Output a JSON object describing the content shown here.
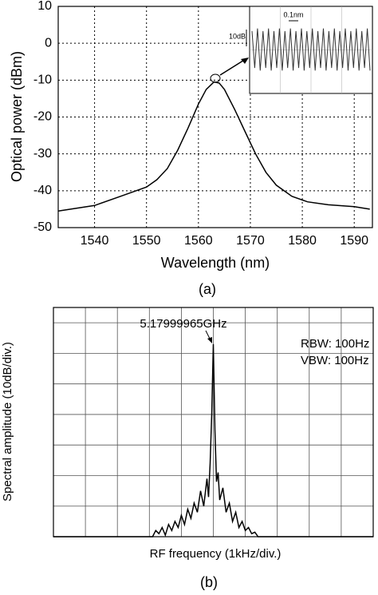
{
  "chart_data": [
    {
      "type": "line",
      "xlabel": "Wavelength (nm)",
      "ylabel": "Optical power (dBm)",
      "caption": "(a)",
      "xlim": [
        1533,
        1593.5
      ],
      "ylim": [
        -50,
        10
      ],
      "xticks": [
        1540,
        1550,
        1560,
        1570,
        1580,
        1590
      ],
      "yticks": [
        -50,
        -40,
        -30,
        -20,
        -10,
        0,
        10
      ],
      "grid": true,
      "color": "#000000",
      "x": [
        1533,
        1540,
        1545,
        1550,
        1552,
        1554,
        1556,
        1558,
        1560,
        1561.5,
        1563,
        1564,
        1565,
        1567,
        1569,
        1571,
        1573,
        1575,
        1578,
        1581,
        1585,
        1590,
        1593
      ],
      "values": [
        -45.5,
        -44,
        -41.5,
        -39,
        -37,
        -34,
        -29,
        -23,
        -16.5,
        -12.5,
        -10.5,
        -10.8,
        -12.5,
        -18,
        -24,
        -30,
        -35,
        -38.5,
        -41.5,
        -43,
        -43.8,
        -44.3,
        -45
      ],
      "inset": {
        "span_label": "0.1nm",
        "scale_label": "10dB",
        "ylim": [
          0,
          1
        ],
        "values": [
          0.85,
          0.15,
          0.9,
          0.1,
          0.85,
          0.15,
          0.9,
          0.1,
          0.85,
          0.15,
          0.9,
          0.1,
          0.85,
          0.15,
          0.9,
          0.1,
          0.85,
          0.15,
          0.9,
          0.1,
          0.85,
          0.15,
          0.9,
          0.1,
          0.85,
          0.15,
          0.9,
          0.1,
          0.85,
          0.15,
          0.9,
          0.1,
          0.85,
          0.15,
          0.9,
          0.1,
          0.85,
          0.15,
          0.9,
          0.1,
          0.85,
          0.15,
          0.9,
          0.1
        ]
      }
    },
    {
      "type": "line",
      "xlabel": "RF frequency (1kHz/div.)",
      "ylabel": "Spectral amplitude (10dB/div.)",
      "caption": "(b)",
      "xlim": [
        0,
        10
      ],
      "ylim": [
        0,
        7.5
      ],
      "xticks": [
        1,
        2,
        3,
        4,
        5,
        6,
        7,
        8,
        9,
        10
      ],
      "yticks": [
        1,
        2,
        3,
        4,
        5,
        6,
        7
      ],
      "tick_labels": false,
      "grid": true,
      "color": "#000000",
      "annotations": [
        "5.17999965GHz",
        "RBW: 100Hz",
        "VBW: 100Hz"
      ],
      "x": [
        0,
        3.1,
        3.2,
        3.3,
        3.4,
        3.5,
        3.6,
        3.7,
        3.8,
        3.9,
        4.0,
        4.1,
        4.2,
        4.3,
        4.4,
        4.5,
        4.6,
        4.7,
        4.8,
        4.85,
        4.9,
        4.95,
        5.0,
        5.05,
        5.1,
        5.15,
        5.2,
        5.3,
        5.4,
        5.5,
        5.6,
        5.7,
        5.8,
        5.9,
        6.0,
        6.1,
        6.2,
        6.3,
        6.4,
        10
      ],
      "values": [
        0,
        0,
        0.2,
        0.1,
        0.3,
        0.05,
        0.4,
        0.2,
        0.5,
        0.3,
        0.7,
        0.4,
        0.9,
        0.6,
        1.1,
        0.8,
        1.5,
        1.0,
        1.9,
        1.3,
        2.4,
        4.0,
        6.3,
        3.5,
        1.8,
        2.1,
        1.2,
        1.6,
        0.8,
        1.1,
        0.5,
        0.8,
        0.3,
        0.5,
        0.2,
        0.3,
        0.1,
        0.15,
        0,
        0
      ]
    }
  ]
}
